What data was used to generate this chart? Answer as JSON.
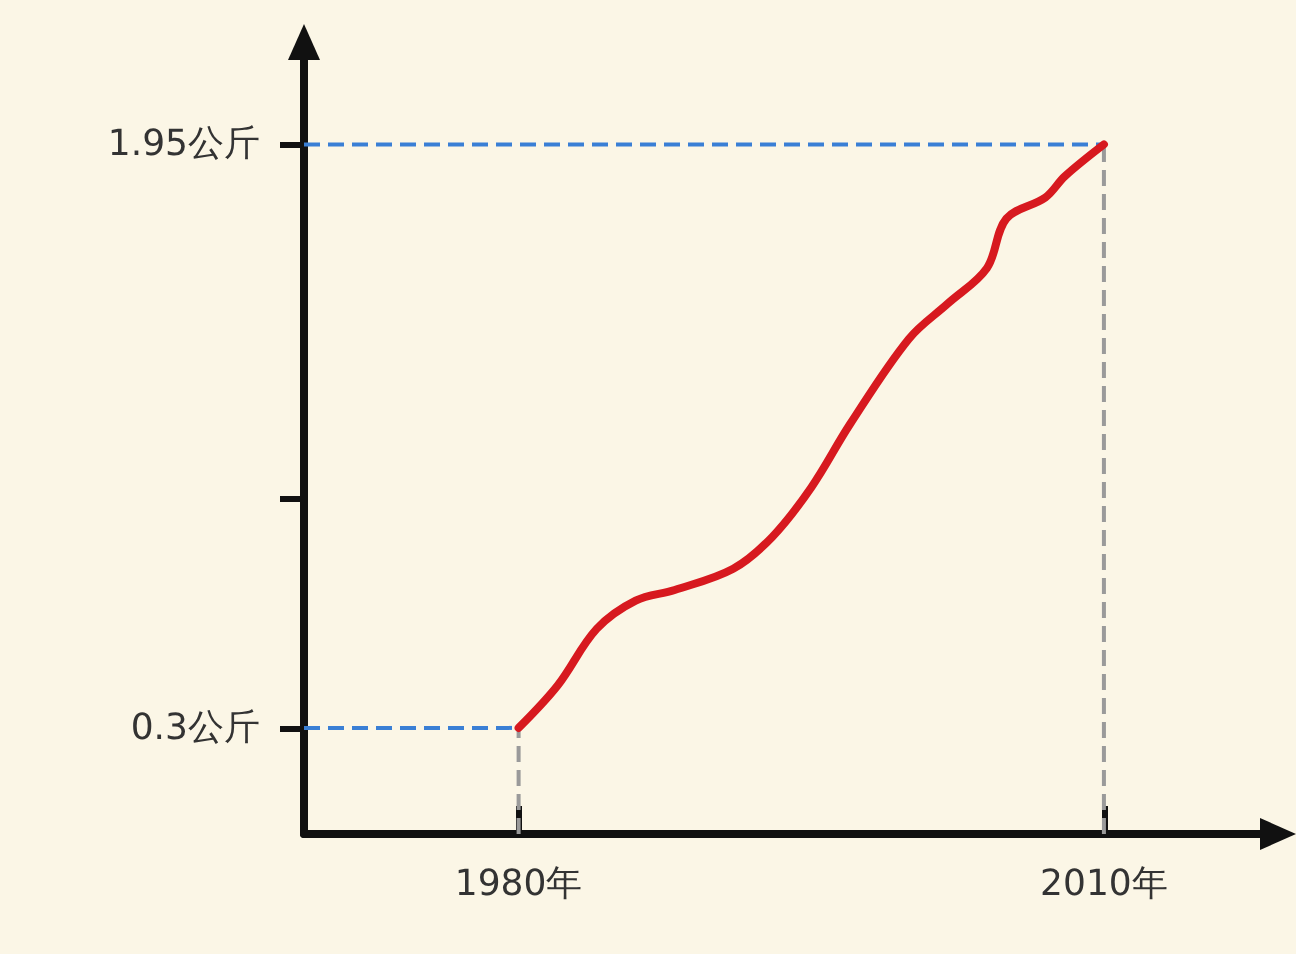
{
  "chart_data": {
    "type": "line",
    "x": [
      1980,
      1982,
      1984,
      1986,
      1988,
      1991,
      1993,
      1995,
      1997,
      2000,
      2002,
      2004,
      2005,
      2007,
      2008,
      2010
    ],
    "series": [
      {
        "color": "#d7191f",
        "values": [
          0.3,
          0.42,
          0.58,
          0.66,
          0.69,
          0.75,
          0.84,
          0.98,
          1.16,
          1.4,
          1.5,
          1.6,
          1.74,
          1.8,
          1.86,
          1.95
        ]
      }
    ],
    "xlim": [
      1969,
      2018
    ],
    "ylim": [
      0,
      2.2
    ],
    "xticks": [
      {
        "value": 1980,
        "label": "1980年"
      },
      {
        "value": 2010,
        "label": "2010年"
      }
    ],
    "yticks": [
      {
        "value": 0.3,
        "label": "0.3公斤"
      },
      {
        "value": 0.95,
        "label": null
      },
      {
        "value": 1.95,
        "label": "1.95公斤"
      }
    ],
    "ref_lines": [
      {
        "axis": "y",
        "value": 0.3,
        "color": "#3a7fd5",
        "line_style": "dashed"
      },
      {
        "axis": "y",
        "value": 1.95,
        "color": "#3a7fd5",
        "line_style": "dashed"
      },
      {
        "axis": "x",
        "value": 1980,
        "color": "#9a9a9a",
        "line_style": "dashed"
      },
      {
        "axis": "x",
        "value": 2010,
        "color": "#9a9a9a",
        "line_style": "dashed"
      }
    ],
    "marker": "none",
    "line_style": "solid",
    "grid": false
  }
}
